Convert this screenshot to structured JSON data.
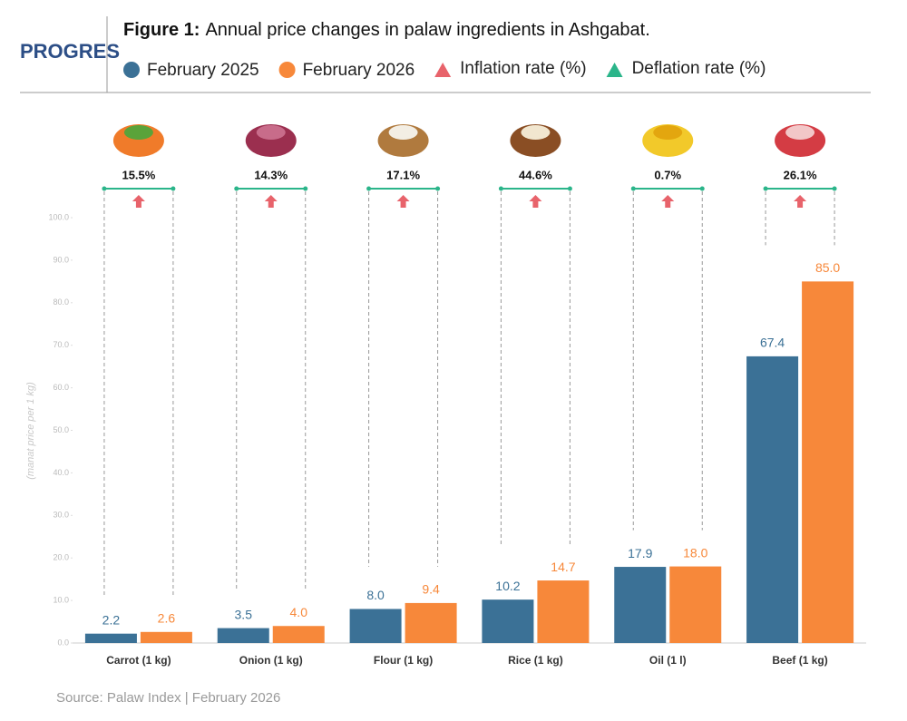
{
  "chart_data": {
    "type": "bar",
    "logo": "PROGRES",
    "title_prefix": "Figure 1:",
    "title": "Annual price changes in palaw ingredients in Ashgabat.",
    "categories": [
      "Carrot (1 kg)",
      "Onion (1 kg)",
      "Flour (1 kg)",
      "Rice (1 kg)",
      "Oil (1 l)",
      "Beef (1 kg)"
    ],
    "series": [
      {
        "name": "February 2025",
        "color": "#3b7196",
        "values": [
          2.2,
          3.5,
          8.0,
          10.2,
          17.9,
          67.4
        ],
        "value_labels": [
          "2.2",
          "3.5",
          "8.0",
          "10.2",
          "17.9",
          "67.4"
        ]
      },
      {
        "name": "February 2026",
        "color": "#f7883a",
        "values": [
          2.6,
          4.0,
          9.4,
          14.7,
          18.0,
          85.0
        ],
        "value_labels": [
          "2.6",
          "4.0",
          "9.4",
          "14.7",
          "18.0",
          "85.0"
        ]
      }
    ],
    "rates": {
      "values": [
        15.5,
        14.3,
        17.1,
        44.6,
        0.7,
        26.1
      ],
      "value_labels": [
        "15.5%",
        "14.3%",
        "17.1%",
        "44.6%",
        "0.7%",
        "26.1%"
      ],
      "color": "#e8636b"
    },
    "rate_legend": [
      {
        "name": "Inflation rate (%)",
        "color": "#e8636b"
      },
      {
        "name": "Deflation rate (%)",
        "color": "#2bb58a"
      }
    ],
    "y_label": "(manat price per 1 kg)",
    "ylim": [
      0,
      100
    ],
    "yticks": [
      {
        "value": 0,
        "label": "0.0"
      },
      {
        "value": 10,
        "label": "10.0"
      },
      {
        "value": 20,
        "label": "20.0"
      },
      {
        "value": 30,
        "label": "30.0"
      },
      {
        "value": 40,
        "label": "40.0"
      },
      {
        "value": 50,
        "label": "50.0"
      },
      {
        "value": 60,
        "label": "60.0"
      },
      {
        "value": 70,
        "label": "70.0"
      },
      {
        "value": 80,
        "label": "80.0"
      },
      {
        "value": 90,
        "label": "90.0"
      },
      {
        "value": 100,
        "label": "100.0"
      }
    ],
    "source": "Source: Palaw Index | February 2026"
  }
}
